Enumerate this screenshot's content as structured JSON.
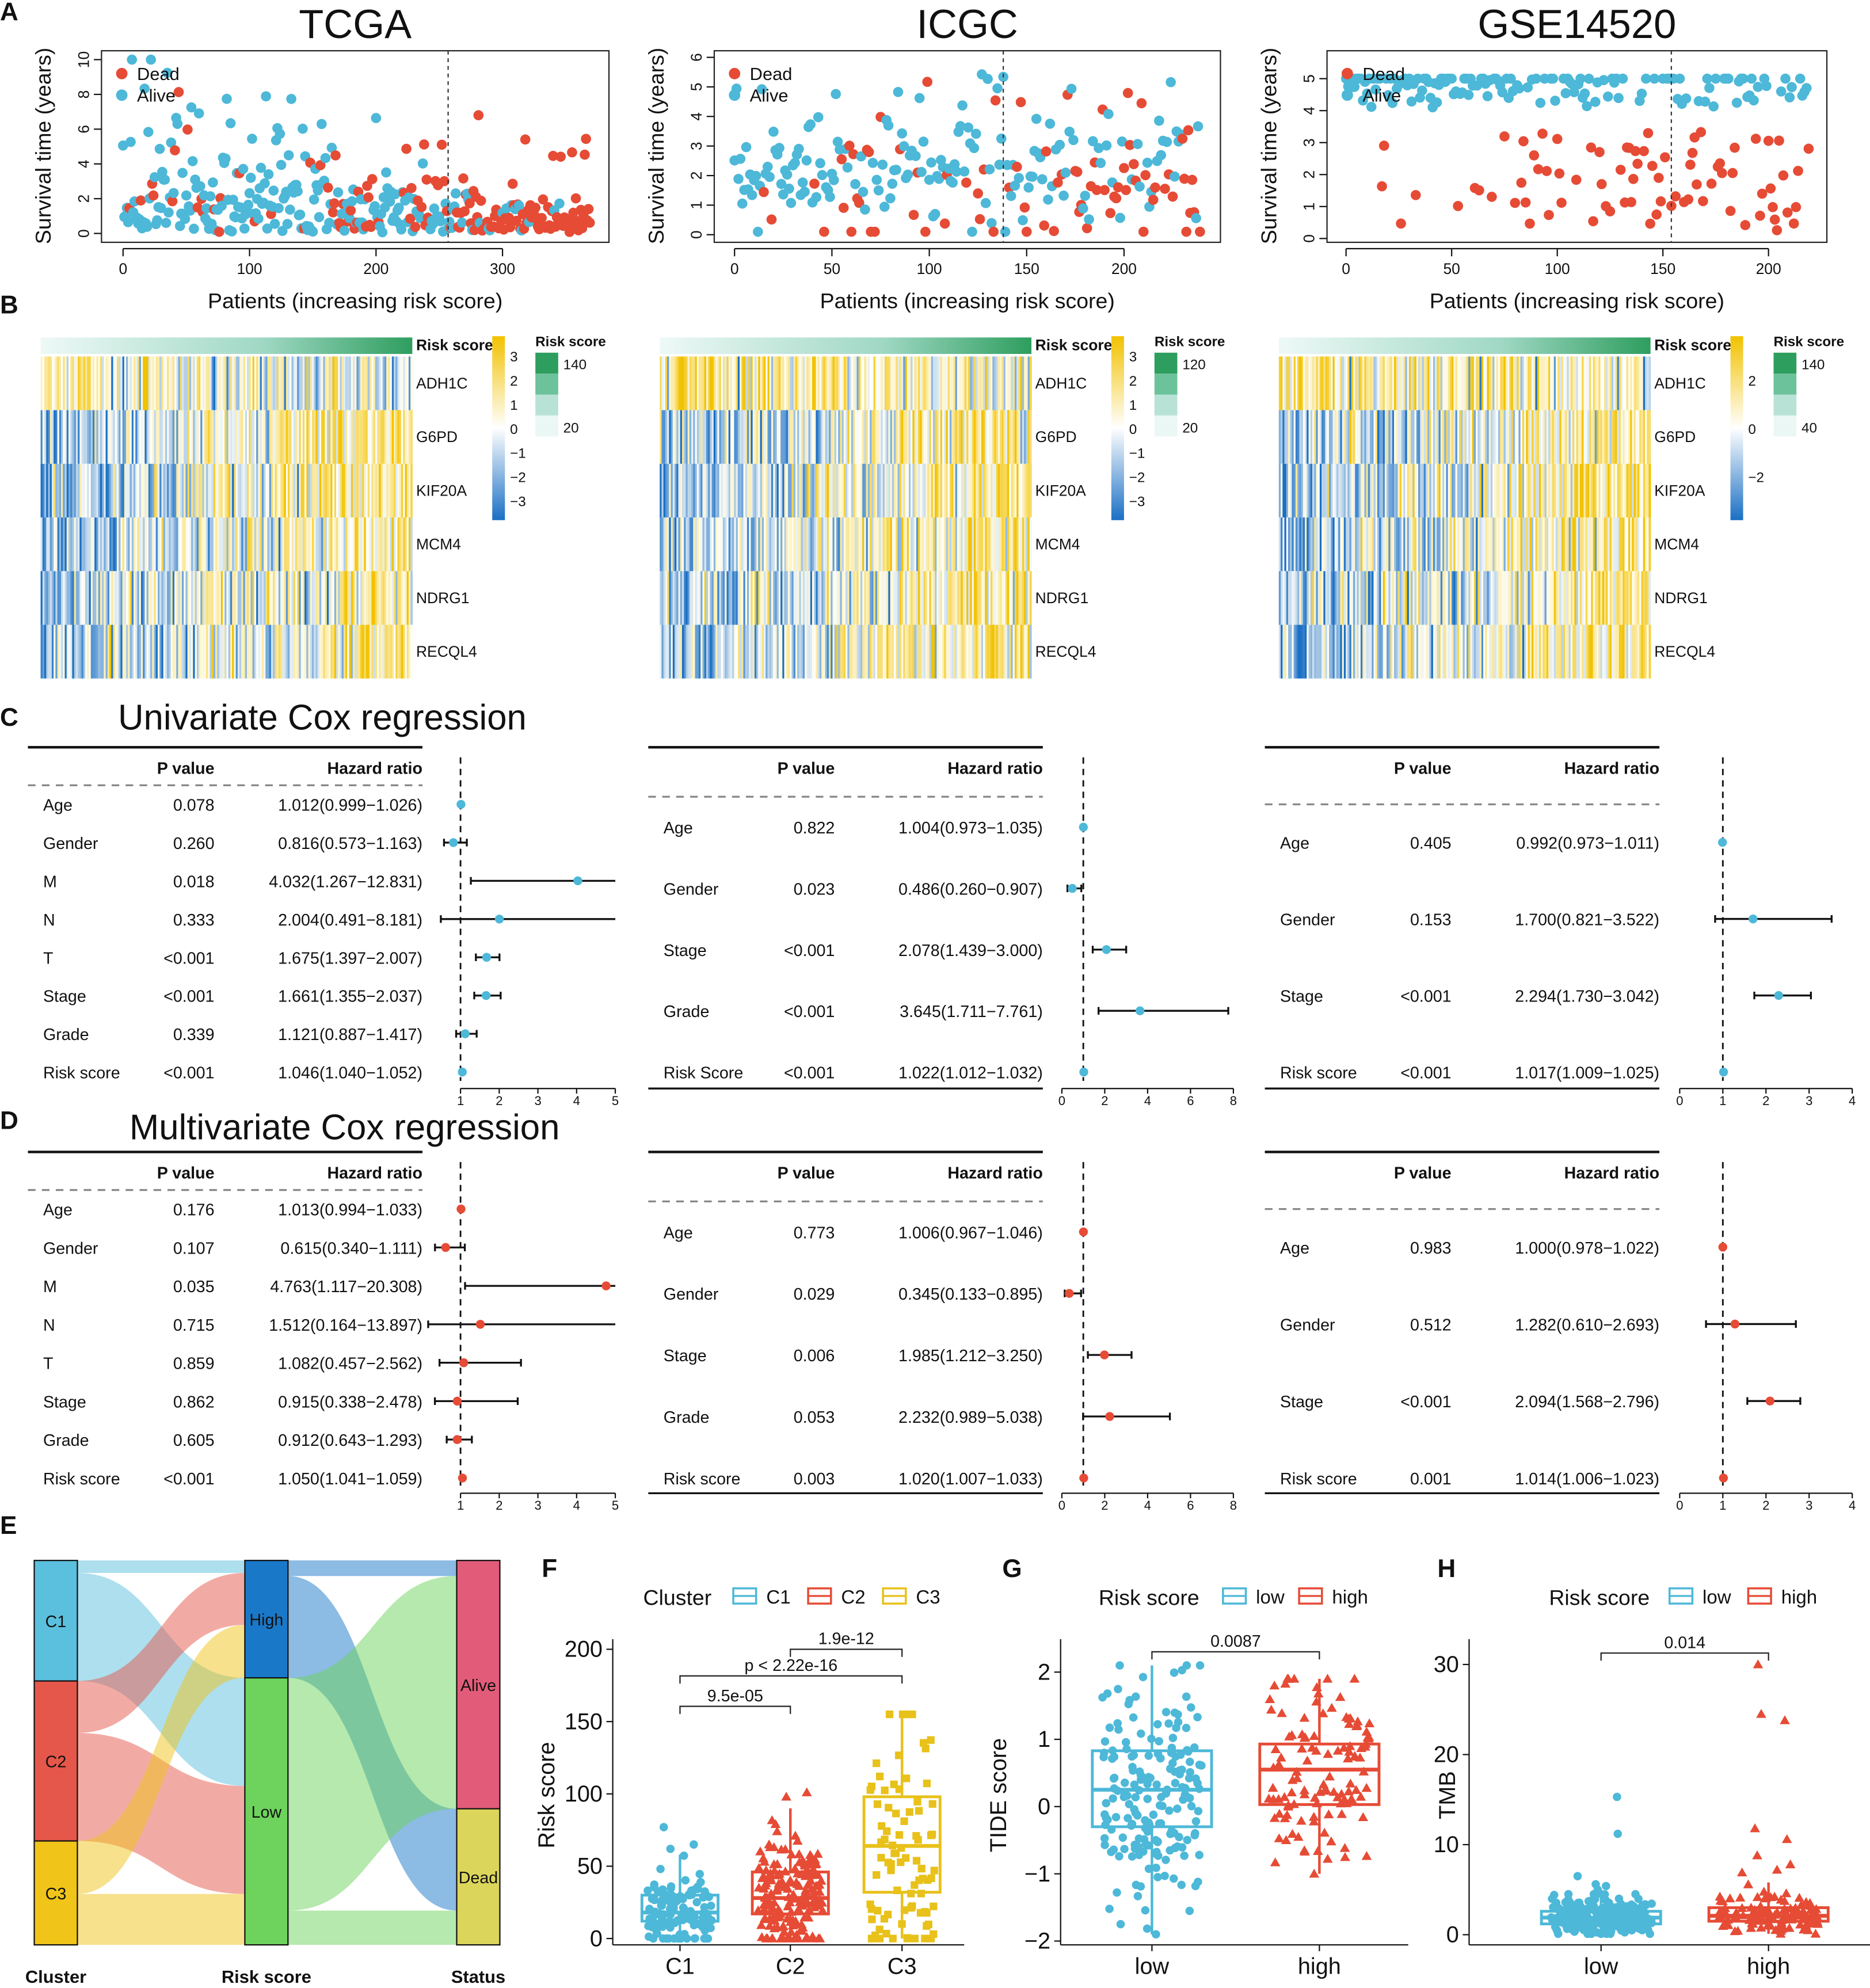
{
  "panel_labels": [
    "A",
    "B",
    "C",
    "D",
    "E",
    "F",
    "G",
    "H"
  ],
  "colors": {
    "dead": "#e64b35",
    "alive": "#4db8d8",
    "low": "#4db8d8",
    "high": "#e64b35",
    "c1": "#4db8d8",
    "c2": "#e64b35",
    "c3": "#e8c11a",
    "heat_low": "#1a6fc4",
    "heat_high": "#f2c200",
    "risk_high": "#2e9e5e",
    "risk_low": "#eaf7f5",
    "sankey_axis": "#1f1fd0"
  },
  "chart_data": [
    {
      "type": "scatter",
      "title": "TCGA",
      "xlabel": "Patients (increasing risk score)",
      "ylabel": "Survival time (years)",
      "legend": [
        "Dead",
        "Alive"
      ],
      "n_patients": 370,
      "risk_cutoff_index": 257,
      "xticks": [
        "0",
        "100",
        "200",
        "300"
      ],
      "yticks": [
        "0",
        "2",
        "4",
        "6",
        "8",
        "10"
      ],
      "ylim": [
        0,
        10
      ]
    },
    {
      "type": "scatter",
      "title": "ICGC",
      "xlabel": "Patients (increasing risk score)",
      "ylabel": "Survival time (years)",
      "legend": [
        "Dead",
        "Alive"
      ],
      "n_patients": 240,
      "risk_cutoff_index": 138,
      "xticks": [
        "0",
        "50",
        "100",
        "150",
        "200"
      ],
      "yticks": [
        "0",
        "1",
        "2",
        "3",
        "4",
        "5",
        "6"
      ],
      "ylim": [
        0,
        6
      ]
    },
    {
      "type": "scatter",
      "title": "GSE14520",
      "xlabel": "Patients (increasing risk score)",
      "ylabel": "Survival time (years)",
      "legend": [
        "Dead",
        "Alive"
      ],
      "n_patients": 220,
      "risk_cutoff_index": 154,
      "xticks": [
        "0",
        "50",
        "100",
        "150",
        "200"
      ],
      "yticks": [
        "0",
        "1",
        "2",
        "3",
        "4",
        "5"
      ],
      "ylim": [
        0,
        5
      ]
    },
    {
      "type": "heatmap",
      "bar_label": "Risk score",
      "genes": [
        "ADH1C",
        "G6PD",
        "KIF20A",
        "MCM4",
        "NDRG1",
        "RECQL4"
      ],
      "colorbar_ticks": [
        "3",
        "2",
        "1",
        "0",
        "−1",
        "−2",
        "−3"
      ],
      "legend_title": "Risk score",
      "legend_ticks": [
        "140",
        "20"
      ]
    },
    {
      "type": "heatmap",
      "bar_label": "Risk score",
      "genes": [
        "ADH1C",
        "G6PD",
        "KIF20A",
        "MCM4",
        "NDRG1",
        "RECQL4"
      ],
      "colorbar_ticks": [
        "3",
        "2",
        "1",
        "0",
        "−1",
        "−2",
        "−3"
      ],
      "legend_title": "Risk score",
      "legend_ticks": [
        "120",
        "20"
      ]
    },
    {
      "type": "heatmap",
      "bar_label": "Risk score",
      "genes": [
        "ADH1C",
        "G6PD",
        "KIF20A",
        "MCM4",
        "NDRG1",
        "RECQL4"
      ],
      "colorbar_ticks": [
        "2",
        "0",
        "−2"
      ],
      "legend_title": "Risk score",
      "legend_ticks": [
        "140",
        "40"
      ]
    },
    {
      "type": "table",
      "section_title": "Univariate Cox regression",
      "headers": [
        "P value",
        "Hazard ratio"
      ],
      "xticks": [
        "1",
        "2",
        "3",
        "4",
        "5"
      ],
      "rows": [
        {
          "name": "Age",
          "p": "0.078",
          "hr": "1.012(0.999−1.026)",
          "est": 1.012,
          "lo": 0.999,
          "hi": 1.026
        },
        {
          "name": "Gender",
          "p": "0.260",
          "hr": "0.816(0.573−1.163)",
          "est": 0.816,
          "lo": 0.573,
          "hi": 1.163
        },
        {
          "name": "M",
          "p": "0.018",
          "hr": "4.032(1.267−12.831)",
          "est": 4.032,
          "lo": 1.267,
          "hi": 12.831
        },
        {
          "name": "N",
          "p": "0.333",
          "hr": "2.004(0.491−8.181)",
          "est": 2.004,
          "lo": 0.491,
          "hi": 8.181
        },
        {
          "name": "T",
          "p": "<0.001",
          "hr": "1.675(1.397−2.007)",
          "est": 1.675,
          "lo": 1.397,
          "hi": 2.007
        },
        {
          "name": "Stage",
          "p": "<0.001",
          "hr": "1.661(1.355−2.037)",
          "est": 1.661,
          "lo": 1.355,
          "hi": 2.037
        },
        {
          "name": "Grade",
          "p": "0.339",
          "hr": "1.121(0.887−1.417)",
          "est": 1.121,
          "lo": 0.887,
          "hi": 1.417
        },
        {
          "name": "Risk score",
          "p": "<0.001",
          "hr": "1.046(1.040−1.052)",
          "est": 1.046,
          "lo": 1.04,
          "hi": 1.052
        }
      ]
    },
    {
      "type": "table",
      "headers": [
        "P value",
        "Hazard ratio"
      ],
      "xticks": [
        "0",
        "2",
        "4",
        "6",
        "8"
      ],
      "rows": [
        {
          "name": "Age",
          "p": "0.822",
          "hr": "1.004(0.973−1.035)",
          "est": 1.004,
          "lo": 0.973,
          "hi": 1.035
        },
        {
          "name": "Gender",
          "p": "0.023",
          "hr": "0.486(0.260−0.907)",
          "est": 0.486,
          "lo": 0.26,
          "hi": 0.907
        },
        {
          "name": "Stage",
          "p": "<0.001",
          "hr": "2.078(1.439−3.000)",
          "est": 2.078,
          "lo": 1.439,
          "hi": 3.0
        },
        {
          "name": "Grade",
          "p": "<0.001",
          "hr": "3.645(1.711−7.761)",
          "est": 3.645,
          "lo": 1.711,
          "hi": 7.761
        },
        {
          "name": "Risk Score",
          "p": "<0.001",
          "hr": "1.022(1.012−1.032)",
          "est": 1.022,
          "lo": 1.012,
          "hi": 1.032
        }
      ]
    },
    {
      "type": "table",
      "headers": [
        "P value",
        "Hazard ratio"
      ],
      "xticks": [
        "0",
        "1",
        "2",
        "3",
        "4"
      ],
      "rows": [
        {
          "name": "Age",
          "p": "0.405",
          "hr": "0.992(0.973−1.011)",
          "est": 0.992,
          "lo": 0.973,
          "hi": 1.011
        },
        {
          "name": "Gender",
          "p": "0.153",
          "hr": "1.700(0.821−3.522)",
          "est": 1.7,
          "lo": 0.821,
          "hi": 3.522
        },
        {
          "name": "Stage",
          "p": "<0.001",
          "hr": "2.294(1.730−3.042)",
          "est": 2.294,
          "lo": 1.73,
          "hi": 3.042
        },
        {
          "name": "Risk score",
          "p": "<0.001",
          "hr": "1.017(1.009−1.025)",
          "est": 1.017,
          "lo": 1.009,
          "hi": 1.025
        }
      ]
    },
    {
      "type": "table",
      "section_title": "Multivariate Cox regression",
      "headers": [
        "P value",
        "Hazard ratio"
      ],
      "xticks": [
        "1",
        "2",
        "3",
        "4",
        "5"
      ],
      "rows": [
        {
          "name": "Age",
          "p": "0.176",
          "hr": "1.013(0.994−1.033)",
          "est": 1.013,
          "lo": 0.994,
          "hi": 1.033
        },
        {
          "name": "Gender",
          "p": "0.107",
          "hr": "0.615(0.340−1.111)",
          "est": 0.615,
          "lo": 0.34,
          "hi": 1.111
        },
        {
          "name": "M",
          "p": "0.035",
          "hr": "4.763(1.117−20.308)",
          "est": 4.763,
          "lo": 1.117,
          "hi": 20.308
        },
        {
          "name": "N",
          "p": "0.715",
          "hr": "1.512(0.164−13.897)",
          "est": 1.512,
          "lo": 0.164,
          "hi": 13.897
        },
        {
          "name": "T",
          "p": "0.859",
          "hr": "1.082(0.457−2.562)",
          "est": 1.082,
          "lo": 0.457,
          "hi": 2.562
        },
        {
          "name": "Stage",
          "p": "0.862",
          "hr": "0.915(0.338−2.478)",
          "est": 0.915,
          "lo": 0.338,
          "hi": 2.478
        },
        {
          "name": "Grade",
          "p": "0.605",
          "hr": "0.912(0.643−1.293)",
          "est": 0.912,
          "lo": 0.643,
          "hi": 1.293
        },
        {
          "name": "Risk score",
          "p": "<0.001",
          "hr": "1.050(1.041−1.059)",
          "est": 1.05,
          "lo": 1.041,
          "hi": 1.059
        }
      ]
    },
    {
      "type": "table",
      "headers": [
        "P value",
        "Hazard ratio"
      ],
      "xticks": [
        "0",
        "2",
        "4",
        "6",
        "8"
      ],
      "rows": [
        {
          "name": "Age",
          "p": "0.773",
          "hr": "1.006(0.967−1.046)",
          "est": 1.006,
          "lo": 0.967,
          "hi": 1.046
        },
        {
          "name": "Gender",
          "p": "0.029",
          "hr": "0.345(0.133−0.895)",
          "est": 0.345,
          "lo": 0.133,
          "hi": 0.895
        },
        {
          "name": "Stage",
          "p": "0.006",
          "hr": "1.985(1.212−3.250)",
          "est": 1.985,
          "lo": 1.212,
          "hi": 3.25
        },
        {
          "name": "Grade",
          "p": "0.053",
          "hr": "2.232(0.989−5.038)",
          "est": 2.232,
          "lo": 0.989,
          "hi": 5.038
        },
        {
          "name": "Risk score",
          "p": "0.003",
          "hr": "1.020(1.007−1.033)",
          "est": 1.02,
          "lo": 1.007,
          "hi": 1.033
        }
      ]
    },
    {
      "type": "table",
      "headers": [
        "P value",
        "Hazard ratio"
      ],
      "xticks": [
        "0",
        "1",
        "2",
        "3",
        "4"
      ],
      "rows": [
        {
          "name": "Age",
          "p": "0.983",
          "hr": "1.000(0.978−1.022)",
          "est": 1.0,
          "lo": 0.978,
          "hi": 1.022
        },
        {
          "name": "Gender",
          "p": "0.512",
          "hr": "1.282(0.610−2.693)",
          "est": 1.282,
          "lo": 0.61,
          "hi": 2.693
        },
        {
          "name": "Stage",
          "p": "<0.001",
          "hr": "2.094(1.568−2.796)",
          "est": 2.094,
          "lo": 1.568,
          "hi": 2.796
        },
        {
          "name": "Risk score",
          "p": "0.001",
          "hr": "1.014(1.006−1.023)",
          "est": 1.014,
          "lo": 1.006,
          "hi": 1.023
        }
      ]
    },
    {
      "type": "sankey",
      "axis_labels": [
        "Cluster",
        "Risk score",
        "Status"
      ],
      "columns": [
        [
          {
            "name": "C1",
            "value": 116,
            "color": "#5bc0de"
          },
          {
            "name": "C2",
            "value": 154,
            "color": "#e5574a"
          },
          {
            "name": "C3",
            "value": 100,
            "color": "#f0c419"
          }
        ],
        [
          {
            "name": "High",
            "value": 113,
            "color": "#1a78c8"
          },
          {
            "name": "Low",
            "value": 257,
            "color": "#6dd35c"
          }
        ],
        [
          {
            "name": "Alive",
            "value": 239,
            "color": "#e25c7a"
          },
          {
            "name": "Dead",
            "value": 131,
            "color": "#dcd55c"
          }
        ]
      ],
      "flows": [
        {
          "from": "C1",
          "to": "High",
          "value": 12
        },
        {
          "from": "C1",
          "to": "Low",
          "value": 104
        },
        {
          "from": "C2",
          "to": "High",
          "value": 50
        },
        {
          "from": "C2",
          "to": "Low",
          "value": 104
        },
        {
          "from": "C3",
          "to": "High",
          "value": 51
        },
        {
          "from": "C3",
          "to": "Low",
          "value": 49
        },
        {
          "from": "High",
          "to": "Alive",
          "value": 15
        },
        {
          "from": "High",
          "to": "Dead",
          "value": 98
        },
        {
          "from": "Low",
          "to": "Alive",
          "value": 224
        },
        {
          "from": "Low",
          "to": "Dead",
          "value": 33
        }
      ]
    },
    {
      "type": "box",
      "legend_title": "Cluster",
      "ylabel": "Risk score",
      "categories": [
        "C1",
        "C2",
        "C3"
      ],
      "yticks": [
        "0",
        "50",
        "100",
        "150",
        "200"
      ],
      "ylim": [
        0,
        200
      ],
      "groups": [
        {
          "n": 120,
          "q1": 12,
          "median": 18,
          "q3": 30,
          "whisker_lo": 0,
          "whisker_hi": 58,
          "outliers": [
            77,
            65,
            62
          ]
        },
        {
          "n": 170,
          "q1": 17,
          "median": 28,
          "q3": 46,
          "whisker_lo": 0,
          "whisker_hi": 90,
          "outliers": [
            101,
            98
          ]
        },
        {
          "n": 85,
          "q1": 32,
          "median": 64,
          "q3": 98,
          "whisker_lo": 0,
          "whisker_hi": 155,
          "outliers": []
        }
      ],
      "comparisons": [
        {
          "a": 0,
          "b": 1,
          "label": "9.5e-05"
        },
        {
          "a": 0,
          "b": 2,
          "label": "p < 2.22e-16"
        },
        {
          "a": 1,
          "b": 2,
          "label": "1.9e-12"
        }
      ]
    },
    {
      "type": "box",
      "legend_title": "Risk score",
      "ylabel": "TIDE score",
      "categories": [
        "low",
        "high"
      ],
      "yticks": [
        "−2",
        "−1",
        "0",
        "1",
        "2"
      ],
      "ylim": [
        -2,
        2.3
      ],
      "groups": [
        {
          "n": 185,
          "q1": -0.3,
          "median": 0.25,
          "q3": 0.83,
          "whisker_lo": -1.9,
          "whisker_hi": 2.1,
          "outliers": []
        },
        {
          "n": 115,
          "q1": 0.03,
          "median": 0.55,
          "q3": 0.93,
          "whisker_lo": -1.0,
          "whisker_hi": 1.9,
          "outliers": []
        }
      ],
      "comparisons": [
        {
          "a": 0,
          "b": 1,
          "label": "0.0087"
        }
      ]
    },
    {
      "type": "box",
      "legend_title": "Risk score",
      "ylabel": "TMB",
      "categories": [
        "low",
        "high"
      ],
      "yticks": [
        "0",
        "10",
        "20",
        "30"
      ],
      "ylim": [
        0,
        31
      ],
      "groups": [
        {
          "n": 250,
          "q1": 1.2,
          "median": 1.9,
          "q3": 2.6,
          "whisker_lo": 0.1,
          "whisker_hi": 4.5,
          "outliers": [
            15.3,
            11.2,
            6.5,
            5.6,
            5.4,
            5.0
          ]
        },
        {
          "n": 120,
          "q1": 1.5,
          "median": 2.1,
          "q3": 3.0,
          "whisker_lo": 0.1,
          "whisker_hi": 5.8,
          "outliers": [
            30.0,
            24.5,
            23.8,
            11.8,
            10.6,
            8.8,
            7.8,
            7.2,
            6.9
          ]
        }
      ],
      "comparisons": [
        {
          "a": 0,
          "b": 1,
          "label": "0.014"
        }
      ]
    }
  ]
}
